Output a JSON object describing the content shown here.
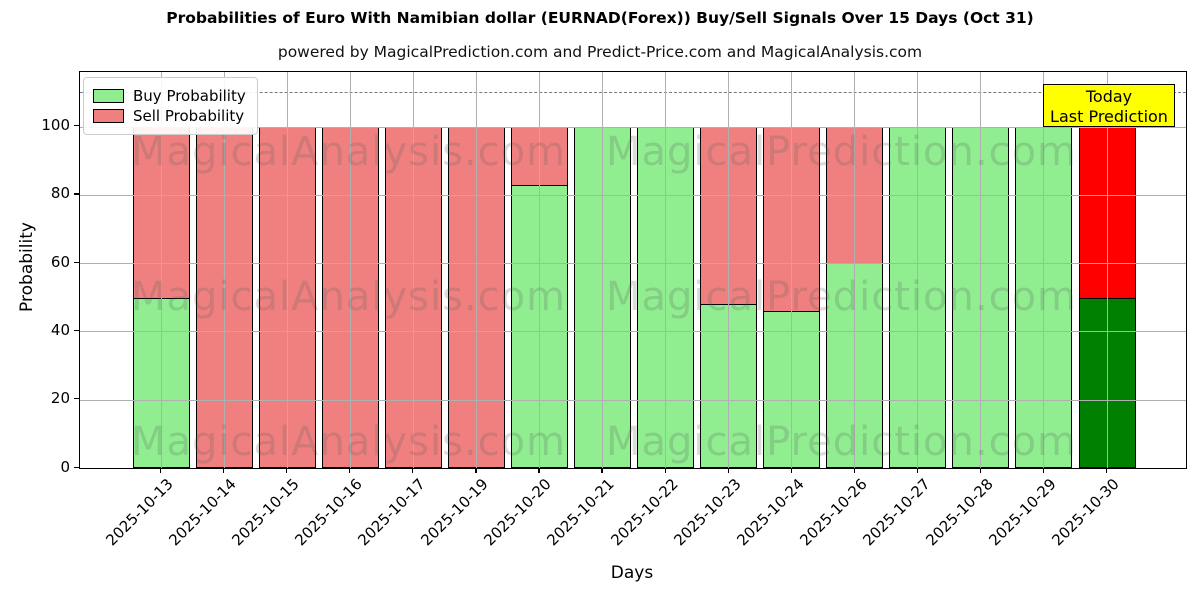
{
  "title": "Probabilities of Euro With Namibian dollar (EURNAD(Forex)) Buy/Sell Signals Over 15 Days (Oct 31)",
  "subtitle": "powered by MagicalPrediction.com and Predict-Price.com and MagicalAnalysis.com",
  "axes": {
    "x_label": "Days",
    "y_label": "Probability",
    "y_ticks": [
      0,
      20,
      40,
      60,
      80,
      100
    ],
    "ylim": [
      0,
      116
    ],
    "dashed_line_y": 110
  },
  "legend": {
    "items": [
      {
        "label": "Buy Probability",
        "color": "#90EE90"
      },
      {
        "label": "Sell Probability",
        "color": "#F08080"
      }
    ]
  },
  "annotation": {
    "line1": "Today",
    "line2": "Last Prediction",
    "bg_color": "#FFFF00"
  },
  "watermarks": {
    "left_text": "MagicalAnalysis.com",
    "right_text": "MagicalPrediction.com"
  },
  "chart_data": {
    "type": "bar",
    "stacked": true,
    "title": "Probabilities of Euro With Namibian dollar (EURNAD(Forex)) Buy/Sell Signals Over 15 Days (Oct 31)",
    "xlabel": "Days",
    "ylabel": "Probability",
    "ylim": [
      0,
      116
    ],
    "grid": true,
    "legend_position": "upper left",
    "categories": [
      "2025-10-13",
      "2025-10-14",
      "2025-10-15",
      "2025-10-16",
      "2025-10-17",
      "2025-10-19",
      "2025-10-20",
      "2025-10-21",
      "2025-10-22",
      "2025-10-23",
      "2025-10-24",
      "2025-10-26",
      "2025-10-27",
      "2025-10-28",
      "2025-10-29",
      "2025-10-30"
    ],
    "series": [
      {
        "name": "Buy Probability",
        "color": "#90EE90",
        "values": [
          50,
          0,
          0,
          0,
          0,
          0,
          83,
          100,
          100,
          48,
          46,
          60,
          100,
          100,
          100,
          50
        ]
      },
      {
        "name": "Sell Probability",
        "color": "#F08080",
        "values": [
          50,
          100,
          100,
          100,
          100,
          100,
          17,
          0,
          0,
          52,
          54,
          40,
          0,
          0,
          0,
          50
        ]
      }
    ],
    "today_bar": {
      "category": "2025-10-30",
      "index": 15,
      "buy_color": "#008000",
      "sell_color": "#FF0000"
    }
  }
}
